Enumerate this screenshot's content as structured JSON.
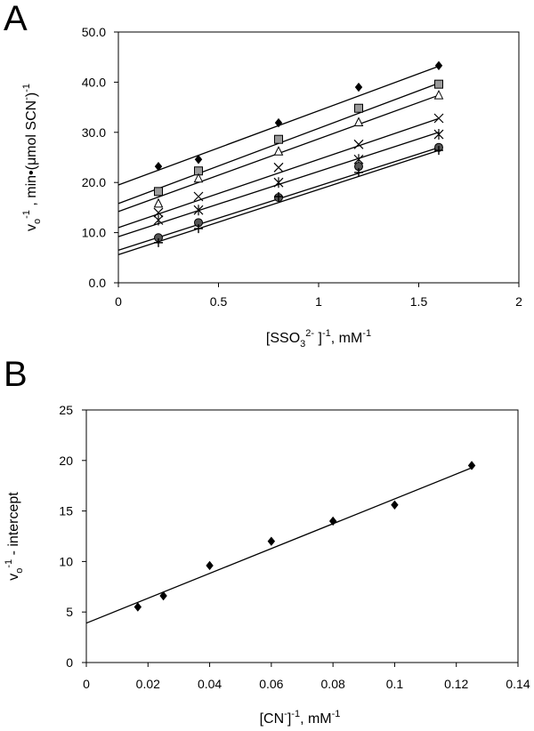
{
  "chart_data": [
    {
      "panel": "A",
      "type": "scatter",
      "xlabel": {
        "pre": "[SSO",
        "sub": "3",
        "sup": "2-",
        "post": " ]",
        "sup2": "-1",
        "post2": ", mM",
        "sup3": "-1"
      },
      "ylabel": {
        "pre": "v",
        "sub": "o",
        "sup": "-1",
        "post": " , min•(μmol SCN",
        "sup2": "-",
        "post2": ")",
        "sup3": "-1"
      },
      "xlim": [
        0,
        2
      ],
      "ylim": [
        0,
        50
      ],
      "xticks": [
        "0",
        "0.5",
        "1",
        "1.5",
        "2"
      ],
      "xtick_values": [
        0,
        0.5,
        1,
        1.5,
        2
      ],
      "yticks": [
        "0.0",
        "10.0",
        "20.0",
        "30.0",
        "40.0",
        "50.0"
      ],
      "ytick_values": [
        0,
        10,
        20,
        30,
        40,
        50
      ],
      "grid": false,
      "x": [
        0.2,
        0.4,
        0.8,
        1.2,
        1.6
      ],
      "series": [
        {
          "marker": "diamond-filled",
          "values": [
            23.2,
            24.6,
            31.9,
            39.0,
            43.3
          ],
          "fit": [
            19.5,
            14.8
          ]
        },
        {
          "marker": "square-gray",
          "values": [
            18.2,
            22.3,
            28.6,
            34.8,
            39.6
          ],
          "fit": [
            15.8,
            15.0
          ]
        },
        {
          "marker": "triangle-open",
          "values": [
            15.8,
            20.8,
            26.2,
            32.0,
            37.4
          ],
          "fit": [
            14.2,
            14.5
          ]
        },
        {
          "marker": "x-cross",
          "values": [
            14.0,
            17.2,
            23.0,
            27.6,
            32.8
          ],
          "fit": [
            11.0,
            13.6
          ]
        },
        {
          "marker": "asterisk",
          "values": [
            12.5,
            14.5,
            20.0,
            24.6,
            29.6
          ],
          "fit": [
            9.2,
            13.0
          ]
        },
        {
          "marker": "circle-filled",
          "values": [
            9.0,
            12.0,
            17.0,
            23.2,
            27.0
          ],
          "fit": [
            6.5,
            12.8
          ]
        },
        {
          "marker": "plus",
          "values": [
            8.0,
            10.8,
            17.2,
            22.0,
            26.4
          ],
          "fit": [
            5.6,
            13.0
          ]
        }
      ]
    },
    {
      "panel": "B",
      "type": "scatter",
      "xlabel": {
        "pre": "[CN",
        "sup": "-",
        "post": "]",
        "sup2": "-1",
        "post2": ", mM",
        "sup3": "-1"
      },
      "ylabel": {
        "pre": "v",
        "sub": "o",
        "sup": "-1",
        "post": " - intercept"
      },
      "xlim": [
        0,
        0.14
      ],
      "ylim": [
        0,
        25
      ],
      "xticks": [
        "0",
        "0.02",
        "0.04",
        "0.06",
        "0.08",
        "0.1",
        "0.12",
        "0.14"
      ],
      "xtick_values": [
        0,
        0.02,
        0.04,
        0.06,
        0.08,
        0.1,
        0.12,
        0.14
      ],
      "yticks": [
        "0",
        "5",
        "10",
        "15",
        "20",
        "25"
      ],
      "ytick_values": [
        0,
        5,
        10,
        15,
        20,
        25
      ],
      "grid": false,
      "x": [
        0.0167,
        0.025,
        0.04,
        0.06,
        0.08,
        0.1,
        0.125
      ],
      "series": [
        {
          "marker": "diamond-filled",
          "values": [
            5.5,
            6.6,
            9.6,
            12.0,
            14.0,
            15.6,
            19.5
          ],
          "fit": [
            3.9,
            123.0
          ]
        }
      ]
    }
  ]
}
